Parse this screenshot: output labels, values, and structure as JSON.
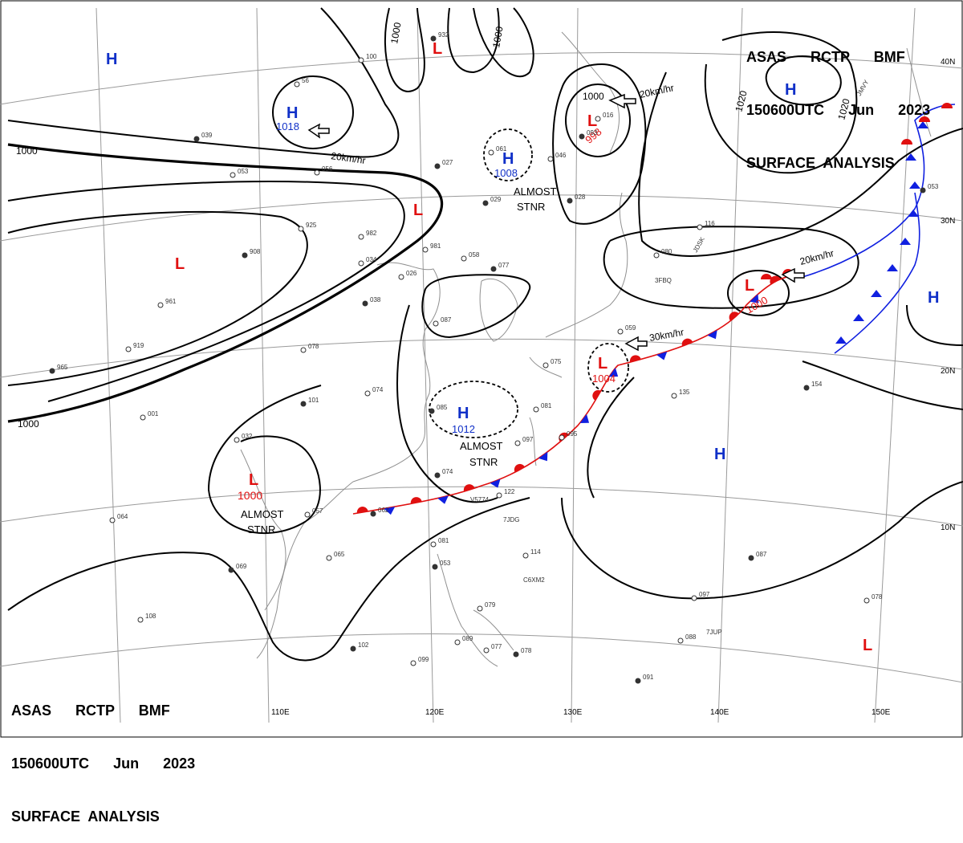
{
  "header": {
    "line1": "ASAS      RCTP      BMF",
    "line2": "150600UTC      Jun      2023",
    "line3": "SURFACE  ANALYSIS"
  },
  "colors": {
    "isobar": "#000000",
    "grid": "#9a9a9a",
    "coast": "#909090",
    "high": "#1030c8",
    "low": "#e01010",
    "warm_front": "#e01010",
    "cold_front": "#1020e0"
  },
  "grid_labels": {
    "lon": [
      "110E",
      "120E",
      "130E",
      "140E",
      "150E"
    ],
    "lat": [
      "40N",
      "30N",
      "20N",
      "10N"
    ]
  },
  "isobar_labels": [
    "1000",
    "1000",
    "1000",
    "1000",
    "1000",
    "1020",
    "1020"
  ],
  "pressure_centers": [
    {
      "type": "H",
      "value": ""
    },
    {
      "type": "H",
      "value": "1018"
    },
    {
      "type": "L",
      "value": ""
    },
    {
      "type": "L",
      "value": ""
    },
    {
      "type": "L",
      "value": ""
    },
    {
      "type": "H",
      "value": "1008"
    },
    {
      "type": "L",
      "value": "998"
    },
    {
      "type": "H",
      "value": ""
    },
    {
      "type": "H",
      "value": ""
    },
    {
      "type": "L",
      "value": "1000"
    },
    {
      "type": "L",
      "value": "1004"
    },
    {
      "type": "H",
      "value": "1012"
    },
    {
      "type": "L",
      "value": "1000"
    },
    {
      "type": "H",
      "value": ""
    },
    {
      "type": "L",
      "value": ""
    }
  ],
  "annotations": [
    {
      "text": "ALMOST"
    },
    {
      "text": "STNR"
    },
    {
      "text": "ALMOST"
    },
    {
      "text": "STNR"
    },
    {
      "text": "ALMOST"
    },
    {
      "text": "STNR"
    }
  ],
  "motion_labels": [
    "20km/hr",
    "20km/hr",
    "20km/hr",
    "30km/hr"
  ],
  "stations": [
    "932",
    "100",
    "56",
    "039",
    "053",
    "056",
    "027",
    "925",
    "982",
    "908",
    "034",
    "026",
    "038",
    "961",
    "919",
    "965",
    "981",
    "058",
    "029",
    "061",
    "046",
    "028",
    "078",
    "087",
    "077",
    "075",
    "074",
    "101",
    "001",
    "032",
    "085",
    "081",
    "097",
    "074",
    "095",
    "122",
    "062",
    "057",
    "065",
    "069",
    "064",
    "108",
    "102",
    "099",
    "081",
    "053",
    "079",
    "077",
    "078",
    "089",
    "114",
    "087",
    "097",
    "088",
    "091",
    "078",
    "135",
    "154",
    "080",
    "116",
    "053",
    "059",
    "016",
    "093"
  ],
  "station_ids": [
    "V5774",
    "7JDG",
    "C6XM2",
    "7JUP",
    "3FBQ",
    "JDSK",
    "JMVY"
  ]
}
